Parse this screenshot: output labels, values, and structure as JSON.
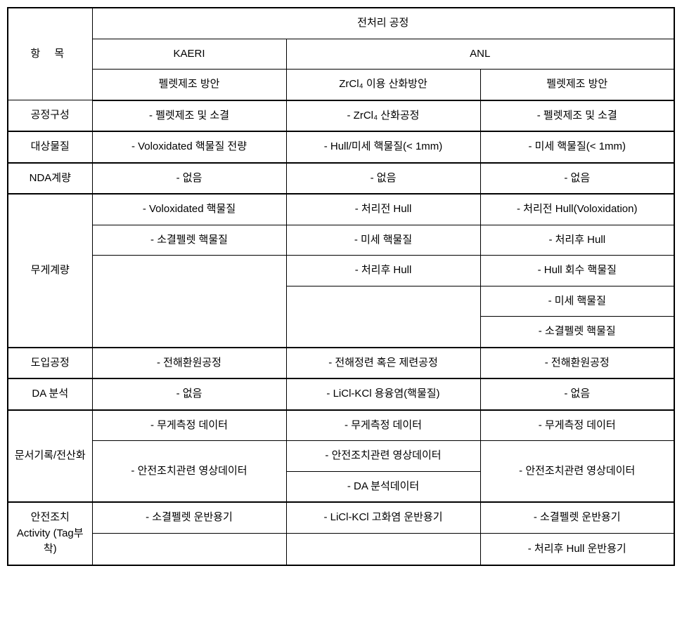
{
  "headers": {
    "row_label": "항 목",
    "main": "전처리 공정",
    "kaeri": "KAERI",
    "anl": "ANL",
    "sub_kaeri": "펠렛제조 방안",
    "sub_anl_1": "ZrCl₄ 이용 산화방안",
    "sub_anl_2": "펠렛제조 방안"
  },
  "rows": {
    "r1": {
      "label": "공정구성",
      "c1": "- 펠렛제조 및 소결",
      "c2": "- ZrCl₄ 산화공정",
      "c3": "- 펠렛제조 및 소결"
    },
    "r2": {
      "label": "대상물질",
      "c1": "- Voloxidated 핵물질 전량",
      "c2": "- Hull/미세 핵물질(< 1mm)",
      "c3": "- 미세 핵물질(< 1mm)"
    },
    "r3": {
      "label": "NDA계량",
      "c1": "- 없음",
      "c2": "- 없음",
      "c3": "- 없음"
    },
    "r4": {
      "label": "무게계량",
      "a1": "- Voloxidated 핵물질",
      "a2": "- 소결펠렛 핵물질",
      "b1": "- 처리전 Hull",
      "b2": "- 미세 핵물질",
      "b3": "- 처리후 Hull",
      "c1": "- 처리전 Hull(Voloxidation)",
      "c2": "- 처리후 Hull",
      "c3": "- Hull 회수 핵물질",
      "c4": "- 미세 핵물질",
      "c5": "- 소결펠렛 핵물질"
    },
    "r5": {
      "label": "도입공정",
      "c1": "- 전해환원공정",
      "c2": "- 전해정련 혹은 제련공정",
      "c3": "- 전해환원공정"
    },
    "r6": {
      "label": "DA 분석",
      "c1": "- 없음",
      "c2": "- LiCl-KCl 용융염(핵물질)",
      "c3": "- 없음"
    },
    "r7": {
      "label": "문서기록/전산화",
      "a1": "- 무게측정 데이터",
      "a2": "- 안전조치관련 영상데이터",
      "b1": "- 무게측정 데이터",
      "b2": "- 안전조치관련 영상데이터",
      "b3": "- DA 분석데이터",
      "c1": "- 무게측정 데이터",
      "c2": "- 안전조치관련 영상데이터"
    },
    "r8": {
      "label": "안전조치 Activity (Tag부착)",
      "a1": "- 소결펠렛 운반용기",
      "b1": "- LiCl-KCl 고화염 운반용기",
      "c1": "- 소결펠렛 운반용기",
      "c2": "- 처리후 Hull 운반용기"
    }
  }
}
